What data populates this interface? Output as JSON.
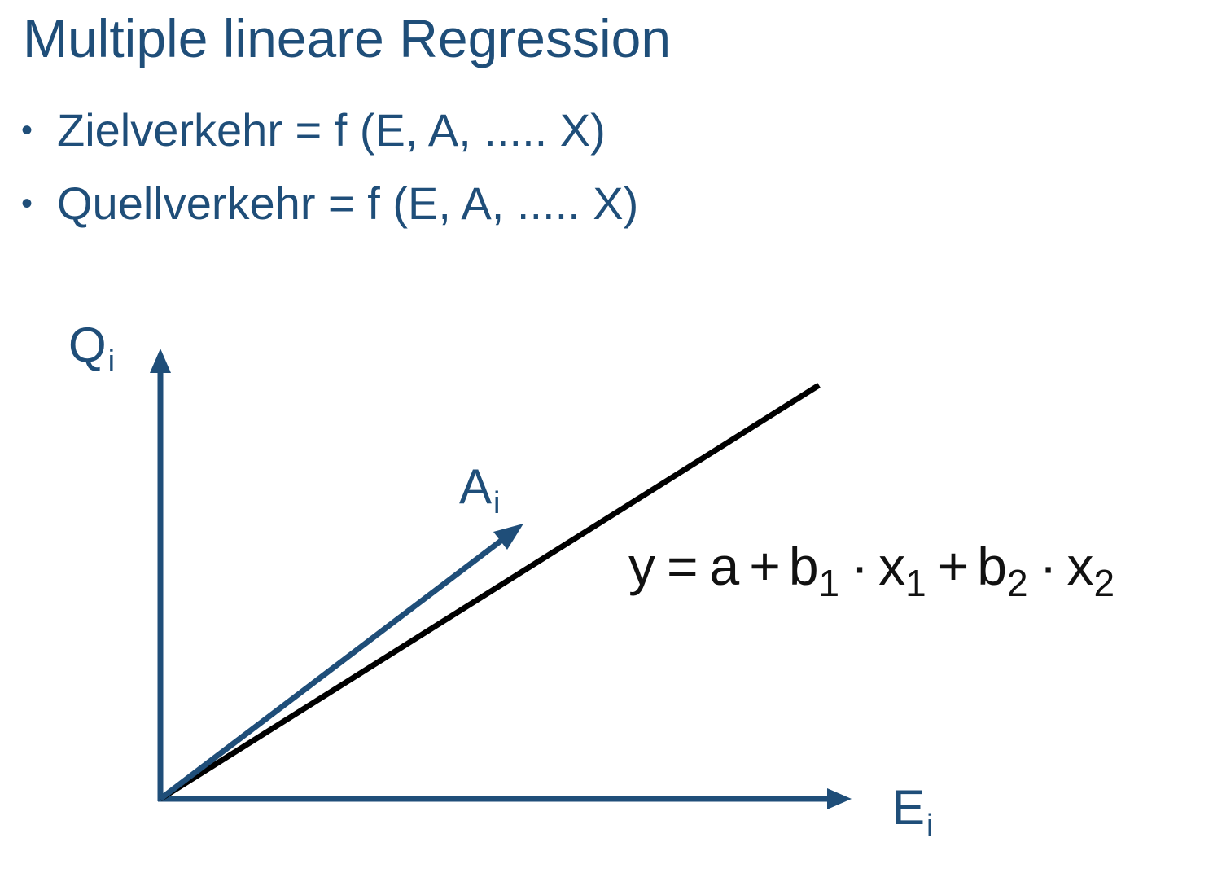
{
  "slide": {
    "title": "Multiple lineare Regression",
    "bullets": [
      {
        "marker": "•",
        "text": "Zielverkehr = f (E, A, ..... X)"
      },
      {
        "marker": "•",
        "text": "Quellverkehr = f (E, A, ..... X)"
      }
    ]
  },
  "diagram": {
    "y_axis": {
      "label": "Q",
      "subscript": "i"
    },
    "x_axis": {
      "label": "E",
      "subscript": "i"
    },
    "arrow": {
      "label": "A",
      "subscript": "i"
    },
    "equation": {
      "y": "y",
      "eq": "=",
      "a": "a",
      "plus": "+",
      "b1": "b",
      "b1_sub": "1",
      "dot": "·",
      "x1": "x",
      "x1_sub": "1",
      "b2": "b",
      "b2_sub": "2",
      "x2": "x",
      "x2_sub": "2"
    }
  },
  "colors": {
    "accent": "#1f4e79",
    "line": "#000000",
    "background": "#ffffff"
  }
}
